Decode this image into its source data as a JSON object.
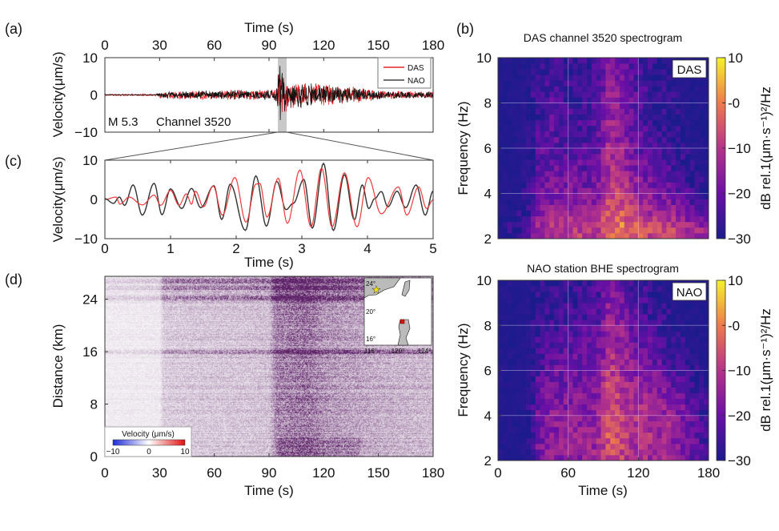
{
  "panels": {
    "a": "(a)",
    "b": "(b)",
    "c": "(c)",
    "d": "(d)"
  },
  "chart_data": [
    {
      "id": "a",
      "type": "line",
      "xlabel": "Time (s)",
      "ylabel": "Velocity(μm/s)",
      "xlim": [
        0,
        180
      ],
      "ylim": [
        -10,
        10
      ],
      "xticks": [
        "0",
        "30",
        "60",
        "90",
        "120",
        "150",
        "180"
      ],
      "yticks": [
        "10",
        "0",
        "-10"
      ],
      "x_axis_position": "top",
      "annotation_event": "M 5.3",
      "annotation_channel": "Channel 3520",
      "highlight_window_s": [
        95,
        100
      ],
      "legend": {
        "position": "top-right",
        "entries": [
          "DAS",
          "NAO"
        ]
      },
      "series": [
        {
          "name": "DAS",
          "color": "#e8262b",
          "envelope": [
            [
              0,
              0.3
            ],
            [
              28,
              0.3
            ],
            [
              30,
              1.0
            ],
            [
              40,
              1.3
            ],
            [
              60,
              1.5
            ],
            [
              90,
              1.6
            ],
            [
              94,
              2.5
            ],
            [
              96,
              9
            ],
            [
              98,
              6
            ],
            [
              101,
              4
            ],
            [
              110,
              3.8
            ],
            [
              125,
              3
            ],
            [
              140,
              2.2
            ],
            [
              150,
              1.3
            ],
            [
              180,
              1.0
            ]
          ]
        },
        {
          "name": "NAO",
          "color": "#111111",
          "envelope": [
            [
              0,
              0.1
            ],
            [
              28,
              0.1
            ],
            [
              30,
              0.8
            ],
            [
              40,
              1.1
            ],
            [
              60,
              1.3
            ],
            [
              90,
              1.4
            ],
            [
              94,
              2.5
            ],
            [
              96,
              9.5
            ],
            [
              98,
              6
            ],
            [
              101,
              3.8
            ],
            [
              110,
              3.4
            ],
            [
              125,
              2.7
            ],
            [
              140,
              2
            ],
            [
              150,
              1.2
            ],
            [
              180,
              0.9
            ]
          ]
        }
      ]
    },
    {
      "id": "c",
      "type": "line",
      "xlabel": "Time (s)",
      "ylabel": "Velocity(μm/s)",
      "xlim": [
        0,
        5
      ],
      "ylim": [
        -10,
        10
      ],
      "xticks": [
        "0",
        "1",
        "2",
        "3",
        "4",
        "5"
      ],
      "yticks": [
        "10",
        "0",
        "-10"
      ],
      "series": [
        {
          "name": "DAS",
          "color": "#ee3a3a",
          "extrema": [
            [
              0,
              0
            ],
            [
              0.17,
              0.6
            ],
            [
              0.23,
              -1.2
            ],
            [
              0.37,
              0.6
            ],
            [
              0.57,
              -1.4
            ],
            [
              0.75,
              1.1
            ],
            [
              0.85,
              -1.5
            ],
            [
              1.0,
              2.3
            ],
            [
              1.13,
              -1.5
            ],
            [
              1.24,
              1.4
            ],
            [
              1.32,
              -1.2
            ],
            [
              1.38,
              2.1
            ],
            [
              1.5,
              -1.9
            ],
            [
              1.65,
              3.4
            ],
            [
              1.79,
              -4
            ],
            [
              1.98,
              5.6
            ],
            [
              2.15,
              -5.8
            ],
            [
              2.3,
              3.9
            ],
            [
              2.36,
              4.1
            ],
            [
              2.47,
              -4.5
            ],
            [
              2.64,
              5.4
            ],
            [
              2.78,
              -6.1
            ],
            [
              2.97,
              7.5
            ],
            [
              3.14,
              -7
            ],
            [
              3.3,
              8
            ],
            [
              3.46,
              -7
            ],
            [
              3.65,
              6.8
            ],
            [
              3.84,
              -7
            ],
            [
              4.01,
              5.6
            ],
            [
              4.21,
              -3.7
            ],
            [
              4.47,
              3.2
            ],
            [
              4.6,
              -4
            ],
            [
              4.78,
              3.2
            ],
            [
              4.9,
              -2.3
            ],
            [
              5,
              -0.1
            ]
          ]
        },
        {
          "name": "NAO",
          "color": "#333333",
          "extrema": [
            [
              0,
              0.2
            ],
            [
              0.13,
              -1
            ],
            [
              0.22,
              0.6
            ],
            [
              0.3,
              -1.5
            ],
            [
              0.43,
              3.7
            ],
            [
              0.57,
              -4
            ],
            [
              0.75,
              4.1
            ],
            [
              0.87,
              -3.9
            ],
            [
              1.0,
              2.7
            ],
            [
              1.17,
              -2.3
            ],
            [
              1.32,
              2.8
            ],
            [
              1.46,
              -2.1
            ],
            [
              1.66,
              3.5
            ],
            [
              1.78,
              -5.1
            ],
            [
              1.91,
              3.9
            ],
            [
              2.14,
              -7.9
            ],
            [
              2.3,
              6
            ],
            [
              2.46,
              -6.8
            ],
            [
              2.62,
              4.6
            ],
            [
              2.76,
              -2.6
            ],
            [
              2.87,
              -1
            ],
            [
              3.03,
              5.1
            ],
            [
              3.16,
              -7.3
            ],
            [
              3.33,
              9.2
            ],
            [
              3.48,
              -7.9
            ],
            [
              3.65,
              6.3
            ],
            [
              3.8,
              -5.2
            ],
            [
              3.92,
              3.7
            ],
            [
              4.02,
              -2.3
            ],
            [
              4.11,
              0.2
            ],
            [
              4.21,
              2
            ],
            [
              4.31,
              -1.9
            ],
            [
              4.45,
              2.1
            ],
            [
              4.58,
              -2.1
            ],
            [
              4.74,
              3.7
            ],
            [
              4.88,
              -4
            ],
            [
              5.0,
              2.1
            ]
          ]
        }
      ]
    },
    {
      "id": "d",
      "type": "heatmap",
      "xlabel": "Time (s)",
      "ylabel": "Distance (km)",
      "xlim": [
        0,
        180
      ],
      "ylim": [
        0,
        27.5
      ],
      "xticks": [
        "0",
        "30",
        "60",
        "90",
        "120",
        "150",
        "180"
      ],
      "yticks": [
        "24",
        "16",
        "8",
        "0"
      ],
      "colorbar": {
        "label": "Velocity (μm/s)",
        "ticks": [
          "−10",
          "0",
          "10"
        ],
        "colors": [
          "#1f2bd6",
          "#ffffff",
          "#e01010"
        ],
        "position": "bottom-left"
      },
      "amplitude_by_time": [
        [
          0,
          0.12
        ],
        [
          30,
          0.14
        ],
        [
          32,
          0.32
        ],
        [
          90,
          0.38
        ],
        [
          94,
          0.75
        ],
        [
          110,
          0.85
        ],
        [
          120,
          0.65
        ],
        [
          150,
          0.5
        ],
        [
          180,
          0.42
        ]
      ],
      "noisy_distances_km": [
        16,
        24.3,
        25.8,
        26.8
      ],
      "inset_map": {
        "lat_ticks": [
          "24°",
          "20°",
          "16°"
        ],
        "lon_ticks": [
          "116°",
          "120°",
          "124°"
        ],
        "event_marker": "star",
        "event_color": "#f5e400",
        "station_marker": "square",
        "station_color": "#e01010"
      }
    },
    {
      "id": "b-das",
      "type": "heatmap",
      "title": "DAS channel 3520 spectrogram",
      "label": "DAS",
      "xlabel": "",
      "ylabel": "Frequency (Hz)",
      "xlim": [
        0,
        180
      ],
      "ylim": [
        2,
        10
      ],
      "yticks": [
        "10",
        "8",
        "6",
        "4",
        "2"
      ],
      "time_bin_centers_s": [
        5,
        15,
        25,
        35,
        45,
        55,
        65,
        75,
        85,
        95,
        105,
        115,
        125,
        135,
        145,
        155,
        165,
        175
      ],
      "freq_bin_centers_hz": [
        2.5,
        3.5,
        4.5,
        5.5,
        6.5,
        7.5,
        8.5,
        9.5
      ],
      "values_db": [
        [
          -28,
          -28,
          -26,
          -12,
          -10,
          -10,
          -9,
          -9,
          -9,
          -2,
          0,
          -4,
          -6,
          -8,
          -8,
          -9,
          -12,
          -14
        ],
        [
          -30,
          -30,
          -28,
          -18,
          -16,
          -16,
          -15,
          -15,
          -14,
          -6,
          -6,
          -10,
          -14,
          -16,
          -17,
          -18,
          -22,
          -25
        ],
        [
          -30,
          -30,
          -28,
          -20,
          -18,
          -19,
          -19,
          -20,
          -18,
          -10,
          -10,
          -15,
          -18,
          -20,
          -22,
          -24,
          -27,
          -29
        ],
        [
          -30,
          -30,
          -29,
          -22,
          -21,
          -22,
          -22,
          -22,
          -20,
          -12,
          -13,
          -18,
          -21,
          -23,
          -25,
          -27,
          -29,
          -30
        ],
        [
          -30,
          -30,
          -29,
          -24,
          -22,
          -23,
          -24,
          -24,
          -22,
          -13,
          -15,
          -20,
          -23,
          -25,
          -27,
          -28,
          -30,
          -30
        ],
        [
          -30,
          -30,
          -29,
          -25,
          -22,
          -24,
          -25,
          -25,
          -23,
          -14,
          -16,
          -21,
          -24,
          -26,
          -28,
          -29,
          -30,
          -30
        ],
        [
          -30,
          -30,
          -29,
          -25,
          -24,
          -25,
          -26,
          -26,
          -24,
          -15,
          -17,
          -22,
          -25,
          -27,
          -28,
          -29,
          -30,
          -30
        ],
        [
          -30,
          -30,
          -30,
          -27,
          -26,
          -27,
          -27,
          -27,
          -25,
          -18,
          -20,
          -24,
          -26,
          -28,
          -29,
          -30,
          -30,
          -30
        ]
      ],
      "colorbar": {
        "label": "dB rel.1(μm·s⁻¹)²/Hz",
        "ticks": [
          "10",
          "-0",
          "−10",
          "−20",
          "−30"
        ],
        "range": [
          -30,
          10
        ]
      }
    },
    {
      "id": "b-nao",
      "type": "heatmap",
      "title": "NAO station BHE spectrogram",
      "label": "NAO",
      "xlabel": "Time (s)",
      "ylabel": "Frequency (Hz)",
      "xlim": [
        0,
        180
      ],
      "ylim": [
        2,
        10
      ],
      "xticks": [
        "0",
        "60",
        "120",
        "180"
      ],
      "yticks": [
        "10",
        "8",
        "6",
        "4",
        "2"
      ],
      "time_bin_centers_s": [
        5,
        15,
        25,
        35,
        45,
        55,
        65,
        75,
        85,
        95,
        105,
        115,
        125,
        135,
        145,
        155,
        165,
        175
      ],
      "freq_bin_centers_hz": [
        2.5,
        3.5,
        4.5,
        5.5,
        6.5,
        7.5,
        8.5,
        9.5
      ],
      "values_db": [
        [
          -30,
          -30,
          -30,
          -18,
          -16,
          -16,
          -15,
          -15,
          -14,
          -6,
          -8,
          -12,
          -12,
          -13,
          -14,
          -16,
          -20,
          -24
        ],
        [
          -30,
          -30,
          -30,
          -18,
          -16,
          -15,
          -15,
          -14,
          -13,
          -2,
          -6,
          -10,
          -10,
          -12,
          -13,
          -16,
          -20,
          -24
        ],
        [
          -30,
          -30,
          -30,
          -20,
          -18,
          -17,
          -16,
          -16,
          -15,
          -6,
          -9,
          -12,
          -13,
          -14,
          -16,
          -19,
          -22,
          -26
        ],
        [
          -30,
          -30,
          -30,
          -22,
          -20,
          -19,
          -19,
          -18,
          -17,
          -8,
          -11,
          -15,
          -16,
          -18,
          -20,
          -22,
          -25,
          -28
        ],
        [
          -30,
          -30,
          -30,
          -24,
          -22,
          -21,
          -21,
          -20,
          -19,
          -10,
          -13,
          -17,
          -19,
          -21,
          -24,
          -26,
          -28,
          -30
        ],
        [
          -30,
          -30,
          -30,
          -25,
          -24,
          -23,
          -23,
          -22,
          -21,
          -12,
          -15,
          -19,
          -22,
          -24,
          -26,
          -28,
          -30,
          -30
        ],
        [
          -30,
          -30,
          -30,
          -27,
          -26,
          -25,
          -25,
          -24,
          -23,
          -14,
          -17,
          -21,
          -24,
          -26,
          -28,
          -30,
          -30,
          -30
        ],
        [
          -30,
          -30,
          -30,
          -28,
          -28,
          -27,
          -27,
          -26,
          -25,
          -17,
          -20,
          -24,
          -26,
          -28,
          -30,
          -30,
          -30,
          -30
        ]
      ],
      "colorbar": {
        "label": "dB rel.1(μm·s⁻¹)²/Hz",
        "ticks": [
          "10",
          "-0",
          "−10",
          "−20",
          "−30"
        ],
        "range": [
          -30,
          10
        ]
      }
    }
  ]
}
